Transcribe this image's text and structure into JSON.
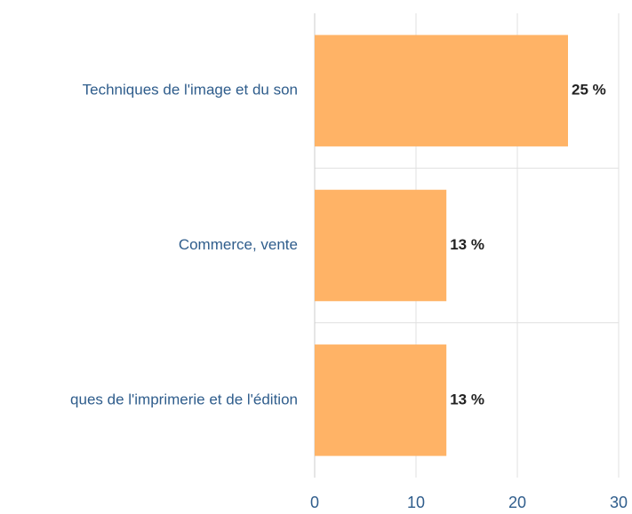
{
  "chart_data": {
    "type": "bar",
    "orientation": "horizontal",
    "categories": [
      "Techniques de l'image et du son",
      "Commerce, vente",
      "ques de l'imprimerie et de l'édition"
    ],
    "values": [
      25,
      13,
      13
    ],
    "value_labels": [
      "25 %",
      "13 %",
      "13 %"
    ],
    "color": "#ffb366",
    "xlim": [
      0,
      30
    ],
    "xticks": [
      0,
      10,
      20,
      30
    ],
    "grid": true
  }
}
